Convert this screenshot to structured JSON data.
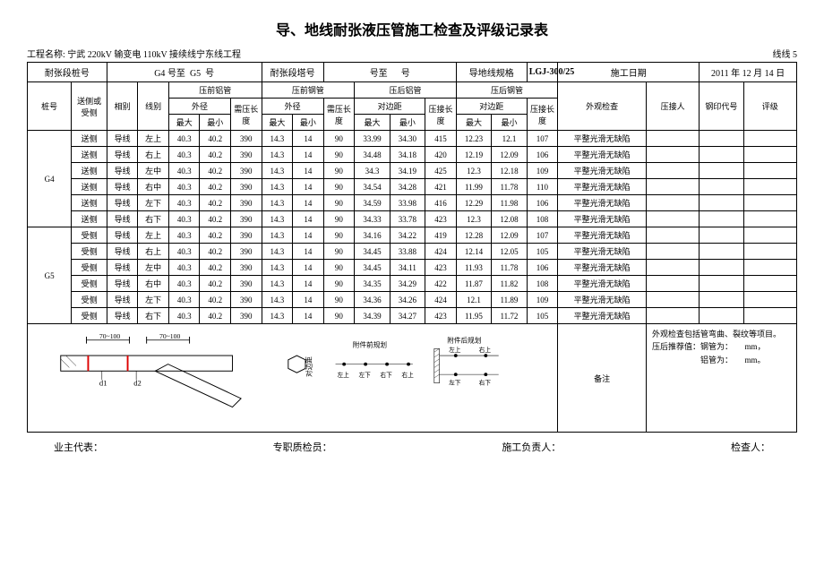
{
  "title": "导、地线耐张液压管施工检查及评级记录表",
  "project_label": "工程名称:",
  "project_name": "宁武 220kV 输变电 110kV 接续线宁东线工程",
  "page_label": "线线 5",
  "info": {
    "col1_label": "耐张段桩号",
    "tower_from": "G4",
    "tower_mid1": "号至",
    "tower_to": "G5",
    "tower_mid2": "号",
    "col2_label": "耐张段塔号",
    "col2_from": "",
    "col2_mid": "号至",
    "col2_to": "",
    "col2_end": "号",
    "spec_label": "导地线规格",
    "spec_value": "LGJ-300/25",
    "date_label": "施工日期",
    "date_value": "2011 年 12 月 14 日"
  },
  "headers": {
    "pile": "桩号",
    "side": "送侧或受侧",
    "phase": "相别",
    "line": "线别",
    "pre_al": "压前铝管",
    "pre_steel": "压前钢管",
    "post_al": "压后铝管",
    "post_steel": "压后钢管",
    "outer": "外径",
    "bend_len": "需压长度",
    "dist": "对边距",
    "press_len": "压接长度",
    "max": "最大",
    "min": "最小",
    "visual": "外观检查",
    "presser": "压接人",
    "stamp": "钢印代号",
    "grade": "评级"
  },
  "rows": [
    {
      "pile": "G4",
      "side": "送侧",
      "phase": "导线",
      "line": "左上",
      "d": [
        "40.3",
        "40.2",
        "390",
        "14.3",
        "14",
        "90",
        "33.99",
        "34.30",
        "415",
        "12.23",
        "12.1",
        "107"
      ],
      "visual": "平整光滑无缺陷"
    },
    {
      "pile": "",
      "side": "送侧",
      "phase": "导线",
      "line": "右上",
      "d": [
        "40.3",
        "40.2",
        "390",
        "14.3",
        "14",
        "90",
        "34.48",
        "34.18",
        "420",
        "12.19",
        "12.09",
        "106"
      ],
      "visual": "平整光滑无缺陷"
    },
    {
      "pile": "",
      "side": "送侧",
      "phase": "导线",
      "line": "左中",
      "d": [
        "40.3",
        "40.2",
        "390",
        "14.3",
        "14",
        "90",
        "34.3",
        "34.19",
        "425",
        "12.3",
        "12.18",
        "109"
      ],
      "visual": "平整光滑无缺陷"
    },
    {
      "pile": "",
      "side": "送侧",
      "phase": "导线",
      "line": "右中",
      "d": [
        "40.3",
        "40.2",
        "390",
        "14.3",
        "14",
        "90",
        "34.54",
        "34.28",
        "421",
        "11.99",
        "11.78",
        "110"
      ],
      "visual": "平整光滑无缺陷"
    },
    {
      "pile": "",
      "side": "送侧",
      "phase": "导线",
      "line": "左下",
      "d": [
        "40.3",
        "40.2",
        "390",
        "14.3",
        "14",
        "90",
        "34.59",
        "33.98",
        "416",
        "12.29",
        "11.98",
        "106"
      ],
      "visual": "平整光滑无缺陷"
    },
    {
      "pile": "",
      "side": "送侧",
      "phase": "导线",
      "line": "右下",
      "d": [
        "40.3",
        "40.2",
        "390",
        "14.3",
        "14",
        "90",
        "34.33",
        "33.78",
        "423",
        "12.3",
        "12.08",
        "108"
      ],
      "visual": "平整光滑无缺陷"
    },
    {
      "pile": "G5",
      "side": "受侧",
      "phase": "导线",
      "line": "左上",
      "d": [
        "40.3",
        "40.2",
        "390",
        "14.3",
        "14",
        "90",
        "34.16",
        "34.22",
        "419",
        "12.28",
        "12.09",
        "107"
      ],
      "visual": "平整光滑无缺陷"
    },
    {
      "pile": "",
      "side": "受侧",
      "phase": "导线",
      "line": "右上",
      "d": [
        "40.3",
        "40.2",
        "390",
        "14.3",
        "14",
        "90",
        "34.45",
        "33.88",
        "424",
        "12.14",
        "12.05",
        "105"
      ],
      "visual": "平整光滑无缺陷"
    },
    {
      "pile": "",
      "side": "受侧",
      "phase": "导线",
      "line": "左中",
      "d": [
        "40.3",
        "40.2",
        "390",
        "14.3",
        "14",
        "90",
        "34.45",
        "34.11",
        "423",
        "11.93",
        "11.78",
        "106"
      ],
      "visual": "平整光滑无缺陷"
    },
    {
      "pile": "",
      "side": "受侧",
      "phase": "导线",
      "line": "右中",
      "d": [
        "40.3",
        "40.2",
        "390",
        "14.3",
        "14",
        "90",
        "34.35",
        "34.29",
        "422",
        "11.87",
        "11.82",
        "108"
      ],
      "visual": "平整光滑无缺陷"
    },
    {
      "pile": "",
      "side": "受侧",
      "phase": "导线",
      "line": "左下",
      "d": [
        "40.3",
        "40.2",
        "390",
        "14.3",
        "14",
        "90",
        "34.36",
        "34.26",
        "424",
        "12.1",
        "11.89",
        "109"
      ],
      "visual": "平整光滑无缺陷"
    },
    {
      "pile": "",
      "side": "受侧",
      "phase": "导线",
      "line": "右下",
      "d": [
        "40.3",
        "40.2",
        "390",
        "14.3",
        "14",
        "90",
        "34.39",
        "34.27",
        "423",
        "11.95",
        "11.72",
        "105"
      ],
      "visual": "平整光滑无缺陷"
    }
  ],
  "diagram": {
    "dim1": "70~100",
    "dim2": "70~100",
    "d1": "d1",
    "d2": "d2",
    "center_label": "对边距",
    "before_label": "附件前规划",
    "after_label": "附件后规划",
    "lu": "左上",
    "ru": "右上",
    "ld": "左下",
    "rd": "右下",
    "remark_label": "备注"
  },
  "notes": {
    "line1": "外观检查包括管弯曲、裂纹等项目。",
    "line2_a": "压后推荐值：钢管为：",
    "line2_b": "mm，",
    "line3_a": "铝管为：",
    "line3_b": "mm。"
  },
  "signs": {
    "owner": "业主代表：",
    "qc": "专职质检员：",
    "foreman": "施工负责人：",
    "inspector": "检查人："
  }
}
